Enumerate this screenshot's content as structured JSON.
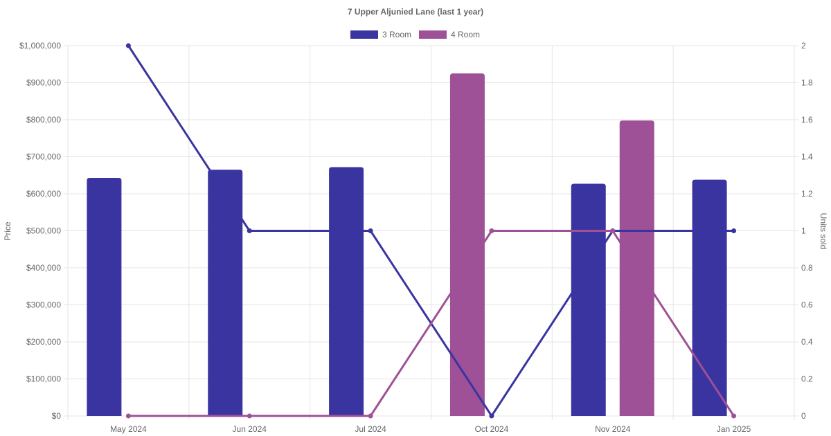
{
  "chart_data": {
    "type": "bar",
    "title": "7 Upper Aljunied Lane (last 1 year)",
    "categories": [
      "May 2024",
      "Jun 2024",
      "Jul 2024",
      "Oct 2024",
      "Nov 2024",
      "Jan 2025"
    ],
    "y_left": {
      "label": "Price",
      "range": [
        0,
        1000000
      ],
      "ticks": [
        "$0",
        "$100,000",
        "$200,000",
        "$300,000",
        "$400,000",
        "$500,000",
        "$600,000",
        "$700,000",
        "$800,000",
        "$900,000",
        "$1,000,000"
      ]
    },
    "y_right": {
      "label": "Units sold",
      "range": [
        0,
        2
      ],
      "ticks": [
        "0",
        "0.2",
        "0.4",
        "0.6",
        "0.8",
        "1",
        "1.2",
        "1.4",
        "1.6",
        "1.8",
        "2"
      ]
    },
    "series": [
      {
        "name": "3 Room",
        "color": "#3a34a0",
        "price_values": [
          643000,
          665000,
          672000,
          null,
          627000,
          638000
        ],
        "units_sold": [
          2,
          1,
          1,
          0,
          1,
          1
        ]
      },
      {
        "name": "4 Room",
        "color": "#9e5196",
        "price_values": [
          null,
          null,
          null,
          925000,
          798000,
          null
        ],
        "units_sold": [
          0,
          0,
          0,
          1,
          1,
          0
        ]
      }
    ],
    "legend_position": "top",
    "grid": true
  }
}
